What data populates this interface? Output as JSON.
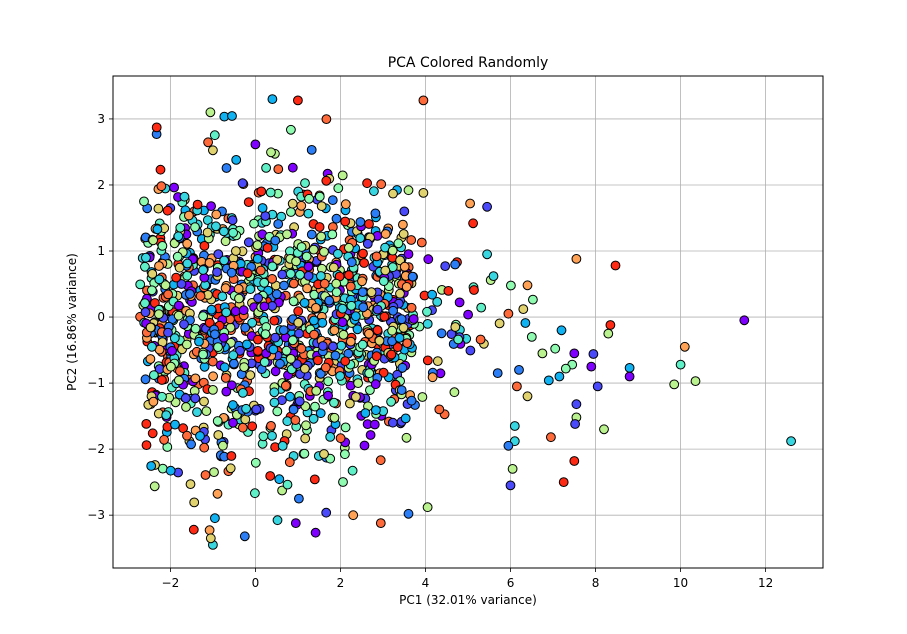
{
  "chart_data": {
    "type": "scatter",
    "title": "PCA Colored Randomly",
    "xlabel": "PC1 (32.01% variance)",
    "ylabel": "PC2 (16.86% variance)",
    "xlim": [
      -3.35,
      13.35
    ],
    "ylim": [
      -3.8,
      3.65
    ],
    "xticks": [
      -2,
      0,
      2,
      4,
      6,
      8,
      10,
      12
    ],
    "xtick_labels": [
      "−2",
      "0",
      "2",
      "4",
      "6",
      "8",
      "10",
      "12"
    ],
    "yticks": [
      -3,
      -2,
      -1,
      0,
      1,
      2,
      3
    ],
    "ytick_labels": [
      "−3",
      "−2",
      "−1",
      "0",
      "1",
      "2",
      "3"
    ],
    "grid": true,
    "colormap": "rainbow",
    "marker_edge_color": "#000000",
    "point_count": 1400,
    "palette": [
      "#8000ff",
      "#4a4afb",
      "#2c7ef7",
      "#10b2f2",
      "#38d6e0",
      "#60f0c8",
      "#8ffbb0",
      "#b9f28f",
      "#e0d26e",
      "#ffa256",
      "#ff6a3a",
      "#ff2a14"
    ],
    "points": [
      {
        "x": 12.6,
        "y": -1.88,
        "c": 0.35
      },
      {
        "x": 11.5,
        "y": -0.05,
        "c": 0.02
      },
      {
        "x": 10.1,
        "y": -0.45,
        "c": 0.8
      },
      {
        "x": 10.0,
        "y": -0.72,
        "c": 0.45
      },
      {
        "x": 10.35,
        "y": -0.97,
        "c": 0.6
      },
      {
        "x": 9.85,
        "y": -1.02,
        "c": 0.65
      },
      {
        "x": 8.8,
        "y": -0.77,
        "c": 0.3
      },
      {
        "x": 8.8,
        "y": -0.9,
        "c": 0.05
      },
      {
        "x": 8.47,
        "y": 0.78,
        "c": 0.97
      },
      {
        "x": 7.55,
        "y": 0.88,
        "c": 0.78
      },
      {
        "x": 8.35,
        "y": -0.12,
        "c": 0.97
      },
      {
        "x": 8.3,
        "y": -0.25,
        "c": 0.6
      },
      {
        "x": 7.95,
        "y": -0.56,
        "c": 0.1
      },
      {
        "x": 8.05,
        "y": -1.05,
        "c": 0.15
      },
      {
        "x": 7.9,
        "y": -0.75,
        "c": 0.08
      },
      {
        "x": 7.55,
        "y": -1.32,
        "c": 0.15
      },
      {
        "x": 7.55,
        "y": -1.52,
        "c": 0.65
      },
      {
        "x": 7.52,
        "y": -1.62,
        "c": 0.12
      },
      {
        "x": 8.2,
        "y": -1.7,
        "c": 0.6
      },
      {
        "x": 7.5,
        "y": -2.18,
        "c": 0.95
      },
      {
        "x": 7.25,
        "y": -2.5,
        "c": 0.95
      },
      {
        "x": 7.45,
        "y": -0.72,
        "c": 0.55
      },
      {
        "x": 7.3,
        "y": -0.78,
        "c": 0.5
      },
      {
        "x": 7.15,
        "y": -0.9,
        "c": 0.25
      },
      {
        "x": 7.5,
        "y": -0.55,
        "c": 0.05
      },
      {
        "x": 7.2,
        "y": -0.2,
        "c": 0.3
      },
      {
        "x": 7.05,
        "y": -0.48,
        "c": 0.55
      },
      {
        "x": 6.9,
        "y": -0.96,
        "c": 0.25
      },
      {
        "x": 6.75,
        "y": -0.55,
        "c": 0.6
      },
      {
        "x": 6.5,
        "y": -0.3,
        "c": 0.5
      },
      {
        "x": 6.4,
        "y": 0.48,
        "c": 0.8
      },
      {
        "x": 6.3,
        "y": 0.12,
        "c": 0.7
      },
      {
        "x": 6.2,
        "y": -0.8,
        "c": 0.2
      },
      {
        "x": 6.15,
        "y": -1.05,
        "c": 0.85
      },
      {
        "x": 6.1,
        "y": -1.65,
        "c": 0.4
      },
      {
        "x": 6.1,
        "y": -1.88,
        "c": 0.35
      },
      {
        "x": 5.95,
        "y": -1.95,
        "c": 0.2
      },
      {
        "x": 6.05,
        "y": -2.3,
        "c": 0.65
      },
      {
        "x": 6.0,
        "y": -2.55,
        "c": 0.1
      },
      {
        "x": 6.95,
        "y": -1.82,
        "c": 0.85
      },
      {
        "x": 6.4,
        "y": -1.2,
        "c": 0.7
      },
      {
        "x": 5.45,
        "y": 1.67,
        "c": 0.15
      },
      {
        "x": 5.45,
        "y": 0.95,
        "c": 0.35
      },
      {
        "x": 5.6,
        "y": 0.62,
        "c": 0.4
      },
      {
        "x": 5.95,
        "y": 0.05,
        "c": 0.85
      },
      {
        "x": 5.05,
        "y": 1.72,
        "c": 0.82
      },
      {
        "x": 5.12,
        "y": 1.42,
        "c": 0.95
      },
      {
        "x": 3.95,
        "y": 1.88,
        "c": 0.7
      },
      {
        "x": 3.6,
        "y": 1.92,
        "c": 0.65
      },
      {
        "x": 3.95,
        "y": 3.28,
        "c": 0.9
      },
      {
        "x": 1.0,
        "y": 3.28,
        "c": 0.95
      },
      {
        "x": 0.4,
        "y": 3.3,
        "c": 0.3
      },
      {
        "x": -1.0,
        "y": -3.45,
        "c": 0.35
      },
      {
        "x": -1.05,
        "y": -3.35,
        "c": 0.7
      },
      {
        "x": -1.45,
        "y": -3.22,
        "c": 0.95
      },
      {
        "x": -0.25,
        "y": -3.32,
        "c": 0.2
      },
      {
        "x": 2.95,
        "y": -3.12,
        "c": 0.9
      },
      {
        "x": 3.6,
        "y": -2.98,
        "c": 0.2
      },
      {
        "x": 4.05,
        "y": -2.88,
        "c": 0.6
      },
      {
        "x": 2.3,
        "y": -3.0,
        "c": 0.75
      },
      {
        "x": 0.95,
        "y": -3.12,
        "c": 0.05
      }
    ]
  }
}
